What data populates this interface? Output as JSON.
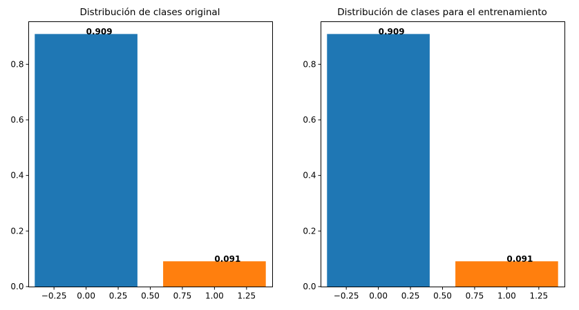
{
  "chart_data": [
    {
      "type": "bar",
      "title": "Distribución de clases original",
      "xlabel": "",
      "ylabel": "",
      "x": [
        0,
        1
      ],
      "values": [
        0.909,
        0.091
      ],
      "data_labels": [
        "0.909",
        "0.091"
      ],
      "colors": [
        "#1f77b4",
        "#ff7f0e"
      ],
      "bar_width": 0.8,
      "xlim": [
        -0.45,
        1.45
      ],
      "ylim": [
        0,
        0.9545
      ],
      "xticks": [
        -0.25,
        0.0,
        0.25,
        0.5,
        0.75,
        1.0,
        1.25
      ],
      "xtick_labels": [
        "−0.25",
        "0.00",
        "0.25",
        "0.50",
        "0.75",
        "1.00",
        "1.25"
      ],
      "yticks": [
        0.0,
        0.2,
        0.4,
        0.6,
        0.8
      ],
      "ytick_labels": [
        "0.0",
        "0.2",
        "0.4",
        "0.6",
        "0.8"
      ],
      "grid": false,
      "legend": false
    },
    {
      "type": "bar",
      "title": "Distribución de clases para el entrenamiento",
      "xlabel": "",
      "ylabel": "",
      "x": [
        0,
        1
      ],
      "values": [
        0.909,
        0.091
      ],
      "data_labels": [
        "0.909",
        "0.091"
      ],
      "colors": [
        "#1f77b4",
        "#ff7f0e"
      ],
      "bar_width": 0.8,
      "xlim": [
        -0.45,
        1.45
      ],
      "ylim": [
        0,
        0.9545
      ],
      "xticks": [
        -0.25,
        0.0,
        0.25,
        0.5,
        0.75,
        1.0,
        1.25
      ],
      "xtick_labels": [
        "−0.25",
        "0.00",
        "0.25",
        "0.50",
        "0.75",
        "1.00",
        "1.25"
      ],
      "yticks": [
        0.0,
        0.2,
        0.4,
        0.6,
        0.8
      ],
      "ytick_labels": [
        "0.0",
        "0.2",
        "0.4",
        "0.6",
        "0.8"
      ],
      "grid": false,
      "legend": false
    }
  ]
}
